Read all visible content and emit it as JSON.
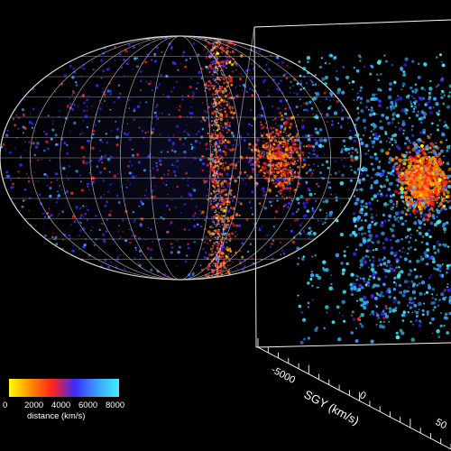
{
  "colorbar": {
    "ticks": [
      "0",
      "2000",
      "4000",
      "6000",
      "8000"
    ],
    "label": "distance (km/s)",
    "colors": [
      "#ffff00",
      "#ff8800",
      "#ff2020",
      "#3a2aff",
      "#3aa0ff",
      "#3ff0ff"
    ]
  },
  "axis": {
    "label": "SGY (km/s)",
    "ticks": [
      "-5000",
      "0",
      "50"
    ]
  },
  "colors": {
    "background": "#000000",
    "grid": "#c8c8c8",
    "frame": "#ffffff"
  }
}
